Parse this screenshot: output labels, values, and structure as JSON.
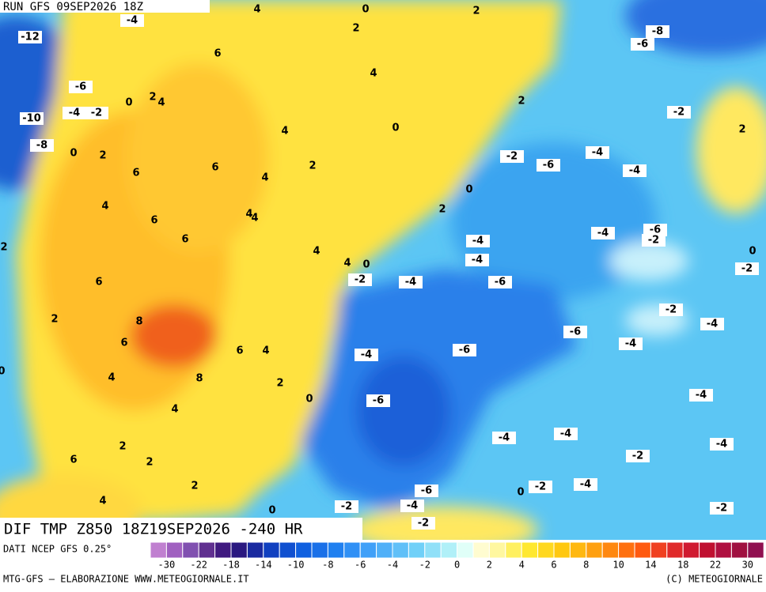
{
  "header": {
    "run": "RUN GFS 09SEP2026 18Z"
  },
  "map": {
    "labels": [
      -12,
      -4,
      4,
      0,
      2,
      2,
      -8,
      -6,
      6,
      4,
      -6,
      2,
      4,
      0,
      -4,
      -2,
      -10,
      2,
      -2,
      0,
      2,
      4,
      -8,
      0,
      2,
      -2,
      -4,
      -6,
      -4,
      6,
      6,
      2,
      4,
      0,
      4,
      2,
      4,
      4,
      6,
      -4,
      -6,
      -2,
      -4,
      6,
      2,
      4,
      -4,
      4,
      0,
      0,
      -2,
      -2,
      -4,
      -6,
      6,
      -2,
      2,
      8,
      -4,
      6,
      -6,
      -4,
      -6,
      -4,
      6,
      4,
      0,
      4,
      8,
      2,
      0,
      -6,
      -4,
      4,
      -4,
      -4,
      -4,
      2,
      -2,
      6,
      2,
      -2,
      -4,
      0,
      2,
      -6,
      -2,
      4,
      -2,
      -4,
      0,
      -2
    ]
  },
  "footer": {
    "field": "DIF TMP Z850 18Z19SEP2026 -240 HR",
    "source": "DATI NCEP GFS 0.25°",
    "credit": "MTG-GFS – ELABORAZIONE WWW.METEOGIORNALE.IT",
    "copyright": "(C) METEOGIORNALE"
  },
  "colorbar": {
    "colors": [
      "#c080d0",
      "#a060c0",
      "#8050b0",
      "#603090",
      "#401a80",
      "#2a1880",
      "#1a2aa0",
      "#1040c0",
      "#1050d0",
      "#1060e0",
      "#1a70e8",
      "#2080f0",
      "#3090f5",
      "#40a0f8",
      "#50b0f8",
      "#60c0f8",
      "#70d0f8",
      "#90e0f8",
      "#b0f0f8",
      "#e0fff8",
      "#fffcd0",
      "#fff7a0",
      "#fff060",
      "#ffe830",
      "#ffd820",
      "#ffc810",
      "#ffb810",
      "#ffa010",
      "#ff8810",
      "#ff7010",
      "#ff5a10",
      "#f04020",
      "#e02a2a",
      "#d01a30",
      "#c01030",
      "#b01040",
      "#a01040",
      "#901050"
    ],
    "ticks": [
      -30,
      -22,
      -18,
      -14,
      -10,
      -8,
      -6,
      -4,
      -2,
      0,
      2,
      4,
      6,
      8,
      10,
      14,
      18,
      22,
      30
    ]
  }
}
